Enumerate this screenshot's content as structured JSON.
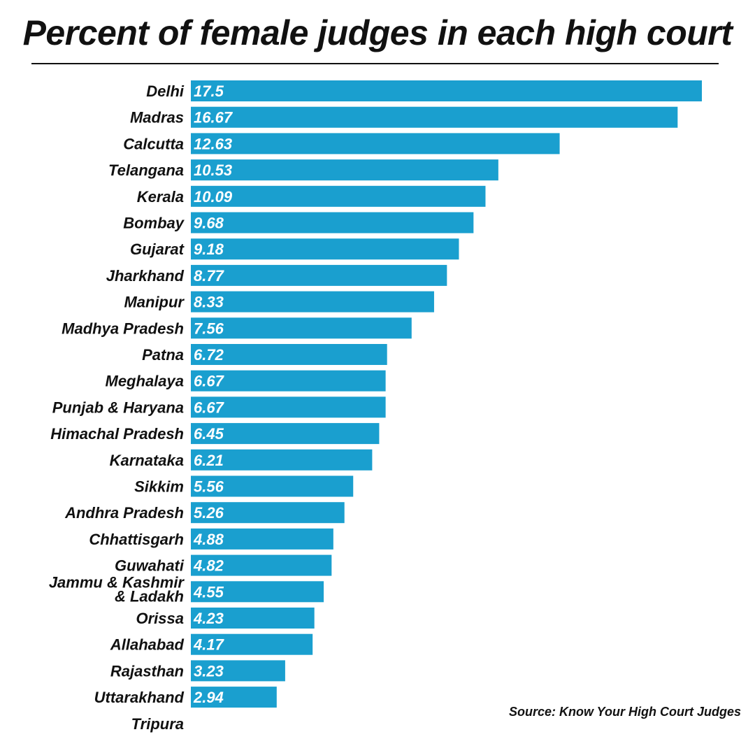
{
  "chart_data": {
    "type": "bar",
    "orientation": "horizontal",
    "title": "Percent of female judges in each high court",
    "source": "Source: Know Your High Court Judges",
    "bar_color": "#1a9fcf",
    "categories": [
      "Delhi",
      "Madras",
      "Calcutta",
      "Telangana",
      "Kerala",
      "Bombay",
      "Gujarat",
      "Jharkhand",
      "Manipur",
      "Madhya Pradesh",
      "Patna",
      "Meghalaya",
      "Punjab & Haryana",
      "Himachal Pradesh",
      "Karnataka",
      "Sikkim",
      "Andhra Pradesh",
      "Chhattisgarh",
      "Guwahati",
      "Jammu & Kashmir\n& Ladakh",
      "Orissa",
      "Allahabad",
      "Rajasthan",
      "Uttarakhand",
      "Tripura"
    ],
    "values": [
      17.5,
      16.67,
      12.63,
      10.53,
      10.09,
      9.68,
      9.18,
      8.77,
      8.33,
      7.56,
      6.72,
      6.67,
      6.67,
      6.45,
      6.21,
      5.56,
      5.26,
      4.88,
      4.82,
      4.55,
      4.23,
      4.17,
      3.23,
      2.94,
      0
    ],
    "value_labels": [
      "17.5",
      "16.67",
      "12.63",
      "10.53",
      "10.09",
      "9.68",
      "9.18",
      "8.77",
      "8.33",
      "7.56",
      "6.72",
      "6.67",
      "6.67",
      "6.45",
      "6.21",
      "5.56",
      "5.26",
      "4.88",
      "4.82",
      "4.55",
      "4.23",
      "4.17",
      "3.23",
      "2.94",
      ""
    ],
    "xlim": [
      0,
      17.5
    ]
  }
}
